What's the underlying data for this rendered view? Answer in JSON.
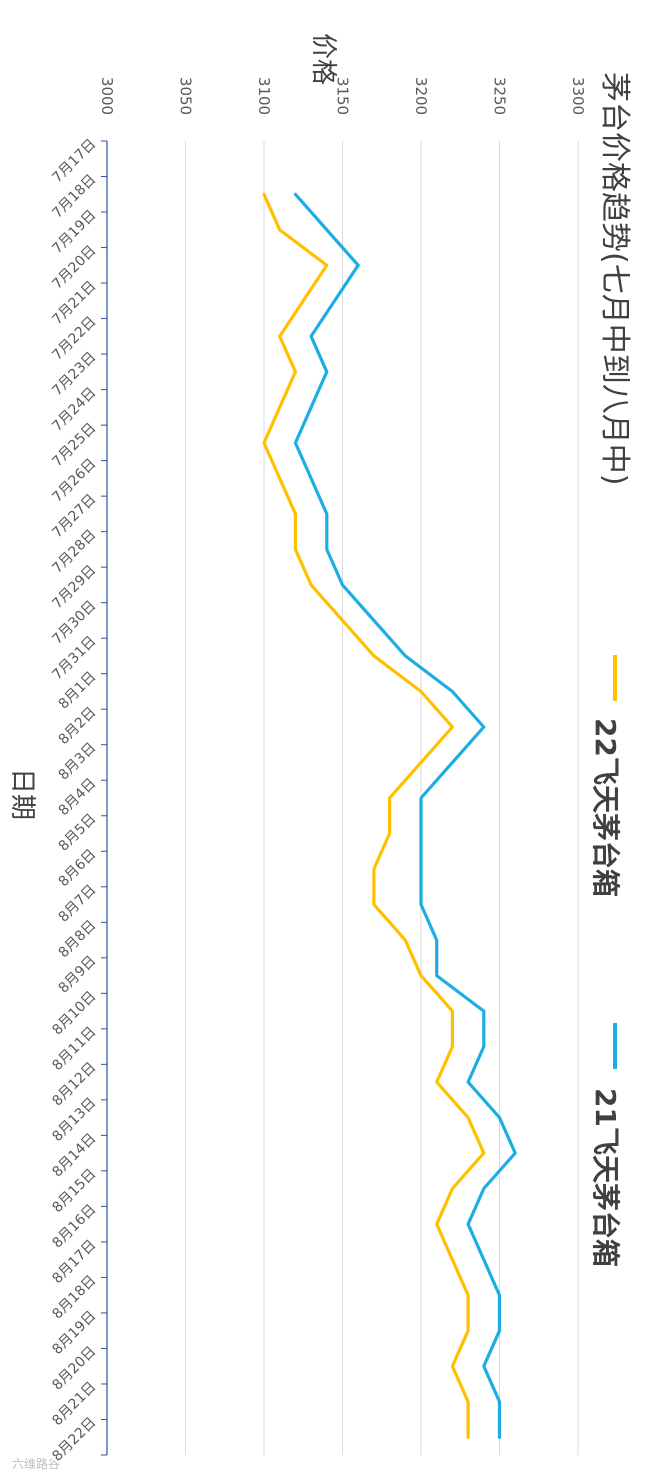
{
  "watermark": "六维路谷",
  "chart_data": {
    "type": "line",
    "title": "茅台价格趋势(七月中到八月中)",
    "xlabel": "日期",
    "ylabel": "价格",
    "ylim": [
      3000,
      3300
    ],
    "yticks": [
      "3000",
      "3050",
      "3100",
      "3150",
      "3200",
      "3250",
      "3300"
    ],
    "grid": true,
    "legend_position": "right",
    "categories": [
      "7月17日",
      "7月18日",
      "7月19日",
      "7月20日",
      "7月21日",
      "7月22日",
      "7月23日",
      "7月24日",
      "7月25日",
      "7月26日",
      "7月27日",
      "7月28日",
      "7月29日",
      "7月30日",
      "7月31日",
      "8月1日",
      "8月2日",
      "8月3日",
      "8月4日",
      "8月5日",
      "8月6日",
      "8月7日",
      "8月8日",
      "8月9日",
      "8月10日",
      "8月11日",
      "8月12日",
      "8月13日",
      "8月14日",
      "8月15日",
      "8月16日",
      "8月17日",
      "8月18日",
      "8月19日",
      "8月20日",
      "8月21日",
      "8月22日"
    ],
    "series": [
      {
        "name": "22飞天茅台箱",
        "color": "#FFC000",
        "values": [
          null,
          3100,
          3110,
          3140,
          null,
          3110,
          3120,
          null,
          3100,
          null,
          3120,
          3120,
          3130,
          null,
          3170,
          3200,
          3220,
          null,
          3180,
          3180,
          3170,
          3170,
          3190,
          3200,
          3220,
          3220,
          3210,
          3230,
          3240,
          3220,
          3210,
          null,
          3230,
          3230,
          3220,
          3230,
          3230
        ]
      },
      {
        "name": "21飞天茅台箱",
        "color": "#1CADE4",
        "values": [
          null,
          3120,
          3140,
          3160,
          null,
          3130,
          3140,
          null,
          3120,
          null,
          3140,
          3140,
          3150,
          null,
          3190,
          3220,
          3240,
          null,
          3200,
          3200,
          3200,
          3200,
          3210,
          3210,
          3240,
          3240,
          3230,
          3250,
          3260,
          3240,
          3230,
          null,
          3250,
          3250,
          3240,
          3250,
          3250
        ]
      }
    ]
  }
}
